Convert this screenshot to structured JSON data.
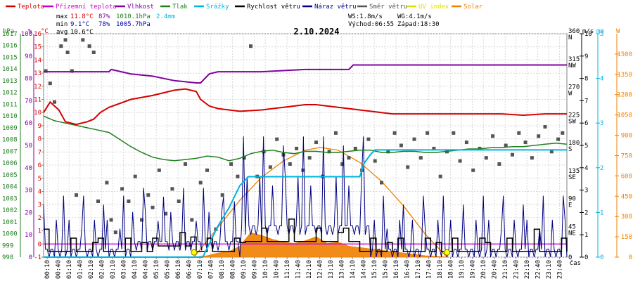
{
  "chart_data": {
    "type": "line",
    "title": "2.10.2024",
    "xlabel": "čas",
    "legend": [
      {
        "label": "Teplota",
        "color": "#d40000"
      },
      {
        "label": "Přízemní teplota",
        "color": "#cc00cc"
      },
      {
        "label": "Vlhkost",
        "color": "#8000a0"
      },
      {
        "label": "Tlak",
        "color": "#208020"
      },
      {
        "label": "Srážky",
        "color": "#00b4e0"
      },
      {
        "label": "Rychlost větru",
        "color": "#000000"
      },
      {
        "label": "Náraz větru",
        "color": "#000080"
      },
      {
        "label": "Směr větru",
        "color": "#555555"
      },
      {
        "label": "UV index",
        "color": "#e0e000"
      },
      {
        "label": "Solar",
        "color": "#f08000"
      }
    ],
    "stats": {
      "max": {
        "label": "max",
        "temp": "11.8°C",
        "hum": "87%",
        "press": "1010.1hPa",
        "rain": "2.4mm"
      },
      "min": {
        "label": "min",
        "temp": "9.1°C",
        "hum": "78%",
        "press": "1005.7hPa"
      },
      "avg": {
        "label": "avg",
        "temp": "10.6°C"
      }
    },
    "wind_info": {
      "ws": "WS:1.8m/s",
      "wg": "WG:4.1m/s",
      "sunrise": "Východ:06:55",
      "sunset": "Západ:18:30"
    },
    "axes": {
      "hpa": {
        "unit": "hPa",
        "range": [
          998,
          1017
        ],
        "ticks": [
          "998",
          "999",
          "1000",
          "1001",
          "1002",
          "1003",
          "1004",
          "1005",
          "1006",
          "1007",
          "1008",
          "1009",
          "1010",
          "1011",
          "1012",
          "1013",
          "1014",
          "1015",
          "1016",
          "1017"
        ]
      },
      "pct": {
        "unit": "%",
        "range": [
          0,
          100
        ],
        "ticks": [
          "0",
          "10",
          "20",
          "30",
          "40",
          "50",
          "60",
          "70",
          "80",
          "90",
          "100"
        ]
      },
      "degc": {
        "unit": "°C",
        "range": [
          -1,
          16
        ],
        "ticks": [
          "-1",
          "0",
          "1",
          "2",
          "3",
          "4",
          "5",
          "6",
          "7",
          "8",
          "9",
          "10",
          "11",
          "12",
          "13",
          "14",
          "15",
          "16"
        ]
      },
      "ms": {
        "unit": "m/s",
        "range": [
          0,
          10
        ],
        "ticks": [
          "0",
          "1",
          "2",
          "3",
          "4",
          "5",
          "6",
          "7",
          "8",
          "9",
          "10"
        ]
      },
      "dir": {
        "labels": [
          "0",
          "45\nNE",
          "90\nE",
          "135\nSE",
          "180\nS",
          "225\nSW",
          "270\nW",
          "315\nNW",
          "360\nN"
        ],
        "range": [
          0,
          360
        ]
      },
      "mm": {
        "unit": "mm",
        "range": [
          0,
          5
        ],
        "ticks": [
          "0",
          "1",
          "2",
          "3",
          "4",
          "5"
        ]
      },
      "solar": {
        "unit": "W",
        "range": [
          0,
          1650
        ],
        "ticks": [
          "0",
          "150",
          "300",
          "450",
          "600",
          "750",
          "900",
          "1050",
          "1200",
          "1350",
          "1500"
        ]
      }
    },
    "x_ticks": [
      "00:10",
      "00:40",
      "01:10",
      "01:40",
      "02:10",
      "02:40",
      "03:10",
      "03:40",
      "04:10",
      "04:40",
      "05:10",
      "05:40",
      "06:10",
      "06:40",
      "07:10",
      "07:40",
      "08:10",
      "08:40",
      "09:10",
      "09:40",
      "10:10",
      "10:40",
      "11:10",
      "11:40",
      "12:10",
      "12:40",
      "13:10",
      "13:40",
      "14:10",
      "14:40",
      "15:10",
      "15:40",
      "16:10",
      "16:40",
      "17:10",
      "17:40",
      "18:10",
      "18:40",
      "19:10",
      "19:40",
      "20:10",
      "20:40",
      "21:10",
      "21:40",
      "22:10",
      "22:40",
      "23:10",
      "23:40"
    ],
    "series": {
      "temperature_c": {
        "x_hours": [
          0,
          0.3,
          0.7,
          1.0,
          1.5,
          2.0,
          2.3,
          2.6,
          3.0,
          4.0,
          5.0,
          6.0,
          6.5,
          7.0,
          7.2,
          7.6,
          8.0,
          9.0,
          10.0,
          11.0,
          12.0,
          12.5,
          13.0,
          13.5,
          14.0,
          15.0,
          16.0,
          17.0,
          18.0,
          19.0,
          20.0,
          21.0,
          22.0,
          23.0,
          24.0
        ],
        "values": [
          10.0,
          10.8,
          10.2,
          9.3,
          9.1,
          9.3,
          9.5,
          10.0,
          10.4,
          11.0,
          11.3,
          11.7,
          11.8,
          11.6,
          11.0,
          10.5,
          10.3,
          10.1,
          10.2,
          10.4,
          10.6,
          10.6,
          10.5,
          10.4,
          10.3,
          10.1,
          9.9,
          9.9,
          9.9,
          9.9,
          9.9,
          9.9,
          9.8,
          9.9,
          9.9
        ]
      },
      "ground_temp_c": {
        "x_hours": [
          0,
          24
        ],
        "values": [
          0,
          0
        ]
      },
      "humidity_pct": {
        "x_hours": [
          0,
          1,
          2,
          3,
          3.1,
          4,
          5,
          6,
          7,
          7.2,
          7.6,
          8,
          10,
          12,
          14,
          14.2,
          16,
          18,
          20,
          22,
          24
        ],
        "values": [
          83,
          83,
          83,
          83,
          84,
          82,
          81,
          79,
          78,
          78,
          82,
          83,
          83,
          84,
          84,
          86,
          86,
          86,
          86,
          86,
          86
        ]
      },
      "pressure_hpa": {
        "x_hours": [
          0,
          0.5,
          1,
          1.5,
          2,
          2.5,
          3,
          3.5,
          4,
          4.5,
          5,
          5.5,
          6,
          6.5,
          7,
          7.5,
          8,
          8.5,
          9,
          9.5,
          10,
          10.5,
          11,
          11.5,
          12,
          12.5,
          13,
          13.5,
          14,
          14.5,
          15,
          15.5,
          16,
          16.5,
          17,
          17.5,
          18,
          18.5,
          19,
          19.5,
          20,
          20.5,
          21,
          21.5,
          22,
          22.5,
          23,
          23.5,
          24
        ],
        "values": [
          1010.0,
          1009.6,
          1009.4,
          1009.2,
          1009.0,
          1008.8,
          1008.6,
          1008.0,
          1007.4,
          1006.9,
          1006.5,
          1006.3,
          1006.2,
          1006.3,
          1006.4,
          1006.6,
          1006.5,
          1006.2,
          1006.4,
          1006.8,
          1007.0,
          1007.1,
          1006.9,
          1006.8,
          1007.0,
          1007.0,
          1006.9,
          1006.9,
          1007.0,
          1007.1,
          1007.1,
          1006.9,
          1006.9,
          1007.0,
          1007.0,
          1006.9,
          1006.9,
          1007.0,
          1007.1,
          1007.2,
          1007.2,
          1007.3,
          1007.3,
          1007.4,
          1007.4,
          1007.5,
          1007.6,
          1007.7,
          1007.6
        ]
      },
      "rain_mm": {
        "x_hours": [
          0,
          7.3,
          7.5,
          8.0,
          8.5,
          9.0,
          9.4,
          9.5,
          14.5,
          14.7,
          15.0,
          15.2,
          24.0
        ],
        "values": [
          0,
          0,
          0.2,
          0.7,
          1.1,
          1.6,
          1.8,
          1.8,
          1.8,
          2.1,
          2.3,
          2.4,
          2.4
        ]
      },
      "solar_w": {
        "x_hours": [
          6.9,
          7.5,
          8.0,
          8.5,
          9.0,
          9.5,
          10.0,
          10.5,
          11.0,
          11.5,
          12.0,
          12.5,
          13.0,
          13.5,
          14.0,
          14.5,
          15.0,
          15.5,
          16.0,
          16.5,
          17.0,
          17.5,
          18.0,
          18.5
        ],
        "values": [
          0,
          10,
          30,
          40,
          80,
          180,
          160,
          130,
          110,
          100,
          120,
          150,
          100,
          110,
          80,
          70,
          60,
          50,
          40,
          30,
          20,
          10,
          5,
          0
        ]
      },
      "solar_theoretical_w": {
        "x_hours": [
          6.9,
          8,
          9,
          10,
          11,
          12,
          12.7,
          13.5,
          14.5,
          15.5,
          16.5,
          17.5,
          18.5
        ],
        "values": [
          0,
          220,
          420,
          590,
          710,
          790,
          810,
          790,
          700,
          560,
          380,
          170,
          0
        ]
      },
      "uv_index": {
        "x_hours": [
          6.9,
          18.5
        ],
        "values": [
          0,
          0
        ]
      }
    }
  }
}
